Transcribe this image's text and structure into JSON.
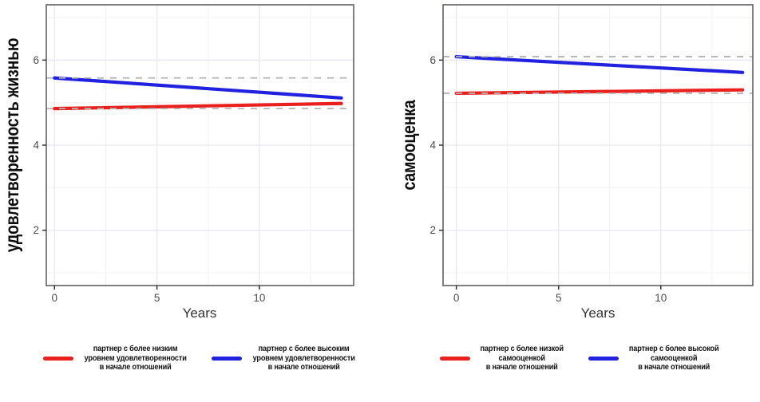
{
  "figure": {
    "background": "#ffffff"
  },
  "colors": {
    "red": "#e9201e",
    "blue": "#2121e0",
    "dashed_reference": "#b3b3b3",
    "grid_major": "#eae7f1",
    "grid_minor": "#f4f2f8",
    "panel_border": "#5f5f66",
    "tick_mark": "#333333",
    "tick_label": "#4d4d4d",
    "axis_title": "#333333"
  },
  "chart_data": [
    {
      "type": "line",
      "title": "",
      "xlabel": "Years",
      "ylabel": "удовлетворенность жизнью",
      "xlim": [
        -0.4,
        14.6
      ],
      "ylim": [
        0.7,
        7.3
      ],
      "xticks": [
        0,
        5,
        10
      ],
      "yticks": [
        2,
        4,
        6
      ],
      "xminor": [
        2.5,
        7.5,
        12.5
      ],
      "yminor": [
        1,
        3,
        5,
        7
      ],
      "grid": "on",
      "legend_position": "bottom",
      "series": [
        {
          "name": "партнер с более низким уровнем удовлетворенности в начале отношений",
          "color": "red",
          "x": [
            0,
            14
          ],
          "y": [
            4.86,
            4.98
          ]
        },
        {
          "name": "партнер с более высоким уровнем удовлетворенности в начале отношений",
          "color": "blue",
          "x": [
            0,
            14
          ],
          "y": [
            5.58,
            5.11
          ]
        }
      ],
      "reference_lines": [
        {
          "y": 5.58,
          "style": "dashed"
        },
        {
          "y": 4.86,
          "style": "dashed"
        }
      ],
      "legend": [
        {
          "color": "red",
          "label_lines": [
            "партнер с более низким",
            "уровнем удовлетворенности",
            "в начале отношений"
          ]
        },
        {
          "color": "blue",
          "label_lines": [
            "партнер с более высоким",
            "уровнем удовлетворенности",
            "в начале отношений"
          ]
        }
      ]
    },
    {
      "type": "line",
      "title": "",
      "xlabel": "Years",
      "ylabel": "самооценка",
      "xlim": [
        -0.65,
        14.5
      ],
      "ylim": [
        0.7,
        7.3
      ],
      "xticks": [
        0,
        5,
        10
      ],
      "yticks": [
        2,
        4,
        6
      ],
      "xminor": [
        2.5,
        7.5,
        12.5
      ],
      "yminor": [
        1,
        3,
        5,
        7
      ],
      "grid": "on",
      "legend_position": "bottom",
      "series": [
        {
          "name": "партнер с более низкой самооценкой в начале отношений",
          "color": "red",
          "x": [
            0,
            14
          ],
          "y": [
            5.22,
            5.3
          ]
        },
        {
          "name": "партнер с более высокой самооценкой в начале отношений",
          "color": "blue",
          "x": [
            0,
            14
          ],
          "y": [
            6.08,
            5.71
          ]
        }
      ],
      "reference_lines": [
        {
          "y": 6.08,
          "style": "dashed"
        },
        {
          "y": 5.22,
          "style": "dashed"
        }
      ],
      "legend": [
        {
          "color": "red",
          "label_lines": [
            "партнер с более низкой",
            "самооценкой",
            "в начале отношений"
          ]
        },
        {
          "color": "blue",
          "label_lines": [
            "партнер с более высокой",
            "самооценкой",
            "в начале отношений"
          ]
        }
      ]
    }
  ]
}
